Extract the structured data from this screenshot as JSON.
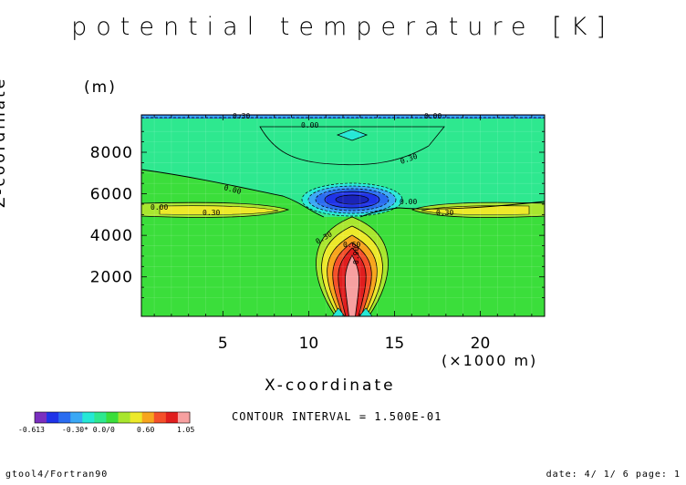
{
  "chart_data": {
    "type": "contour",
    "title": "potential temperature [K]",
    "xlabel": "X-coordinate",
    "xunit": "(×1000 m)",
    "ylabel": "Z-coordinate",
    "yunit": "(m)",
    "xlim": [
      0.25,
      23.75
    ],
    "ylim": [
      100,
      9800
    ],
    "x_ticks": [
      5,
      10,
      15,
      20
    ],
    "y_ticks": [
      2000,
      4000,
      6000,
      8000
    ],
    "grid": true,
    "contour_interval_text": "CONTOUR INTERVAL = 1.500E-01",
    "contour_labels": [
      "0.30",
      "0.00",
      "0.00",
      "0.30",
      "0.00",
      "0.00",
      "0.00",
      "0.30",
      "0.30",
      "0.30",
      "0.60",
      "0.90"
    ],
    "levels": [
      -0.613,
      -0.45,
      -0.3,
      -0.15,
      0.0,
      0.15,
      0.3,
      0.45,
      0.6,
      0.75,
      0.9,
      1.05
    ],
    "colorbar_labels": [
      "-0.613",
      "-0.30",
      "0.00",
      "0.60",
      "1.05"
    ],
    "colorbar_overlap_text": "-0.30* 0.0/0",
    "colors": [
      "#7a2fbf",
      "#1f33e8",
      "#2a6cf0",
      "#3aa8f5",
      "#26e8d6",
      "#2ee88f",
      "#3bde3b",
      "#a8e62e",
      "#ece92a",
      "#f7a51e",
      "#f4502a",
      "#e01e1e",
      "#f7a0a0"
    ]
  },
  "footer": {
    "left": "gtool4/Fortran90",
    "right": "date: 4/ 1/ 6 page: 1"
  }
}
